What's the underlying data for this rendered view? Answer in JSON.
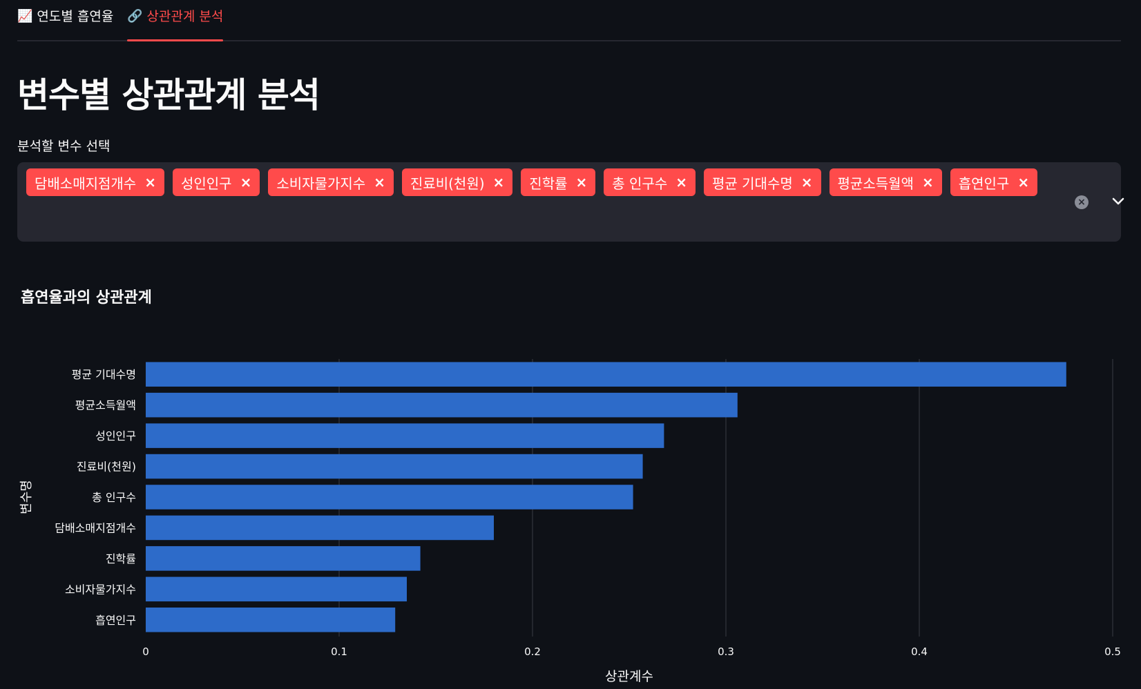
{
  "tabs": [
    {
      "icon": "📈",
      "label": "연도별 흡연율",
      "active": false
    },
    {
      "icon": "🔗",
      "label": "상관관계 분석",
      "active": true
    }
  ],
  "page_title": "변수별 상관관계 분석",
  "select": {
    "label": "분석할 변수 선택",
    "chips": [
      "담배소매지점개수",
      "성인인구",
      "소비자물가지수",
      "진료비(천원)",
      "진학률",
      "총 인구수",
      "평균 기대수명",
      "평균소득월액",
      "흡연인구"
    ],
    "remove_glyph": "×",
    "clear_glyph": "×"
  },
  "colors": {
    "accent": "#ff4b4b",
    "bar": "#2d6bc9",
    "background": "#0e1117"
  },
  "chart_data": {
    "type": "bar",
    "orientation": "horizontal",
    "title": "흡연율과의 상관관계",
    "xlabel": "상관계수",
    "ylabel": "변수명",
    "categories": [
      "평균 기대수명",
      "평균소득월액",
      "성인인구",
      "진료비(천원)",
      "총 인구수",
      "담배소매지점개수",
      "진학률",
      "소비자물가지수",
      "흡연인구"
    ],
    "values": [
      0.476,
      0.306,
      0.268,
      0.257,
      0.252,
      0.18,
      0.142,
      0.135,
      0.129
    ],
    "xlim": [
      0,
      0.5
    ],
    "xticks": [
      "0",
      "0.1",
      "0.2",
      "0.3",
      "0.4",
      "0.5"
    ],
    "grid": true
  }
}
